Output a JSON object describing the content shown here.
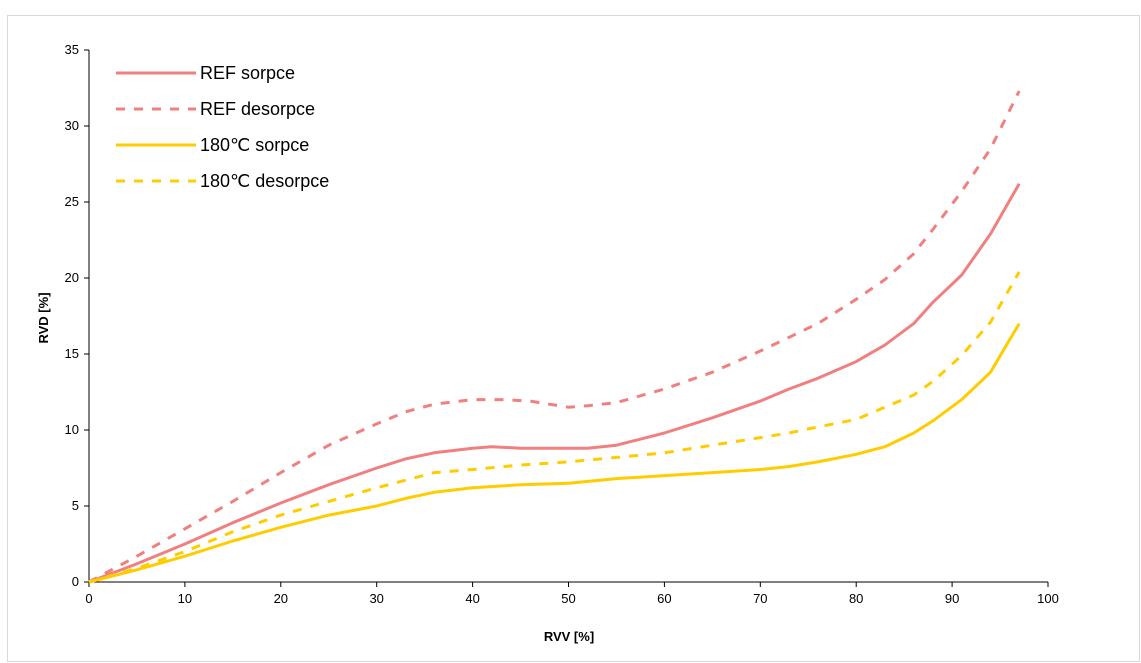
{
  "chart_data": {
    "type": "line",
    "xlabel": "RVV [%]",
    "ylabel": "RVD [%]",
    "xlim": [
      0,
      100
    ],
    "ylim": [
      0,
      35
    ],
    "xticks": [
      0,
      10,
      20,
      30,
      40,
      50,
      60,
      70,
      80,
      90,
      100
    ],
    "yticks": [
      0,
      5,
      10,
      15,
      20,
      25,
      30,
      35
    ],
    "grid": false,
    "legend_position": "top-left",
    "series": [
      {
        "name": "REF sorpce",
        "color": "#f08080",
        "dash": "solid",
        "points": [
          [
            0,
            0
          ],
          [
            5,
            1.2
          ],
          [
            10,
            2.5
          ],
          [
            15,
            3.9
          ],
          [
            20,
            5.2
          ],
          [
            25,
            6.4
          ],
          [
            30,
            7.5
          ],
          [
            33,
            8.1
          ],
          [
            36,
            8.5
          ],
          [
            40,
            8.8
          ],
          [
            42,
            8.9
          ],
          [
            45,
            8.8
          ],
          [
            48,
            8.8
          ],
          [
            52,
            8.8
          ],
          [
            55,
            9.0
          ],
          [
            60,
            9.8
          ],
          [
            65,
            10.8
          ],
          [
            70,
            11.9
          ],
          [
            73,
            12.7
          ],
          [
            76,
            13.4
          ],
          [
            80,
            14.5
          ],
          [
            83,
            15.6
          ],
          [
            86,
            17.0
          ],
          [
            88,
            18.4
          ],
          [
            91,
            20.2
          ],
          [
            94,
            22.9
          ],
          [
            97,
            26.2
          ]
        ]
      },
      {
        "name": "REF desorpce",
        "color": "#f08080",
        "dash": "dashed",
        "points": [
          [
            0,
            0
          ],
          [
            5,
            1.7
          ],
          [
            10,
            3.5
          ],
          [
            15,
            5.3
          ],
          [
            20,
            7.2
          ],
          [
            25,
            9.0
          ],
          [
            30,
            10.4
          ],
          [
            33,
            11.2
          ],
          [
            36,
            11.7
          ],
          [
            40,
            12.0
          ],
          [
            43,
            12.0
          ],
          [
            46,
            11.9
          ],
          [
            48,
            11.7
          ],
          [
            50,
            11.5
          ],
          [
            52,
            11.6
          ],
          [
            55,
            11.8
          ],
          [
            60,
            12.7
          ],
          [
            65,
            13.8
          ],
          [
            70,
            15.2
          ],
          [
            73,
            16.1
          ],
          [
            76,
            17.0
          ],
          [
            80,
            18.6
          ],
          [
            83,
            19.9
          ],
          [
            86,
            21.6
          ],
          [
            88,
            23.2
          ],
          [
            91,
            25.7
          ],
          [
            94,
            28.5
          ],
          [
            97,
            32.3
          ]
        ]
      },
      {
        "name": "180℃ sorpce",
        "color": "#ffcc00",
        "dash": "solid",
        "points": [
          [
            0,
            0
          ],
          [
            5,
            0.8
          ],
          [
            10,
            1.7
          ],
          [
            15,
            2.7
          ],
          [
            20,
            3.6
          ],
          [
            25,
            4.4
          ],
          [
            30,
            5.0
          ],
          [
            33,
            5.5
          ],
          [
            36,
            5.9
          ],
          [
            40,
            6.2
          ],
          [
            45,
            6.4
          ],
          [
            50,
            6.5
          ],
          [
            55,
            6.8
          ],
          [
            60,
            7.0
          ],
          [
            65,
            7.2
          ],
          [
            70,
            7.4
          ],
          [
            73,
            7.6
          ],
          [
            76,
            7.9
          ],
          [
            80,
            8.4
          ],
          [
            83,
            8.9
          ],
          [
            86,
            9.8
          ],
          [
            88,
            10.6
          ],
          [
            91,
            12.0
          ],
          [
            94,
            13.8
          ],
          [
            97,
            17.0
          ]
        ]
      },
      {
        "name": "180℃ desorpce",
        "color": "#ffcc00",
        "dash": "dashed",
        "points": [
          [
            0,
            0
          ],
          [
            5,
            0.9
          ],
          [
            10,
            2.0
          ],
          [
            15,
            3.3
          ],
          [
            20,
            4.4
          ],
          [
            25,
            5.3
          ],
          [
            30,
            6.2
          ],
          [
            33,
            6.7
          ],
          [
            36,
            7.2
          ],
          [
            40,
            7.4
          ],
          [
            45,
            7.7
          ],
          [
            50,
            7.9
          ],
          [
            55,
            8.2
          ],
          [
            60,
            8.5
          ],
          [
            65,
            9.0
          ],
          [
            70,
            9.5
          ],
          [
            73,
            9.8
          ],
          [
            76,
            10.2
          ],
          [
            80,
            10.7
          ],
          [
            83,
            11.5
          ],
          [
            86,
            12.3
          ],
          [
            88,
            13.2
          ],
          [
            91,
            14.9
          ],
          [
            94,
            17.1
          ],
          [
            97,
            20.4
          ]
        ]
      }
    ]
  }
}
